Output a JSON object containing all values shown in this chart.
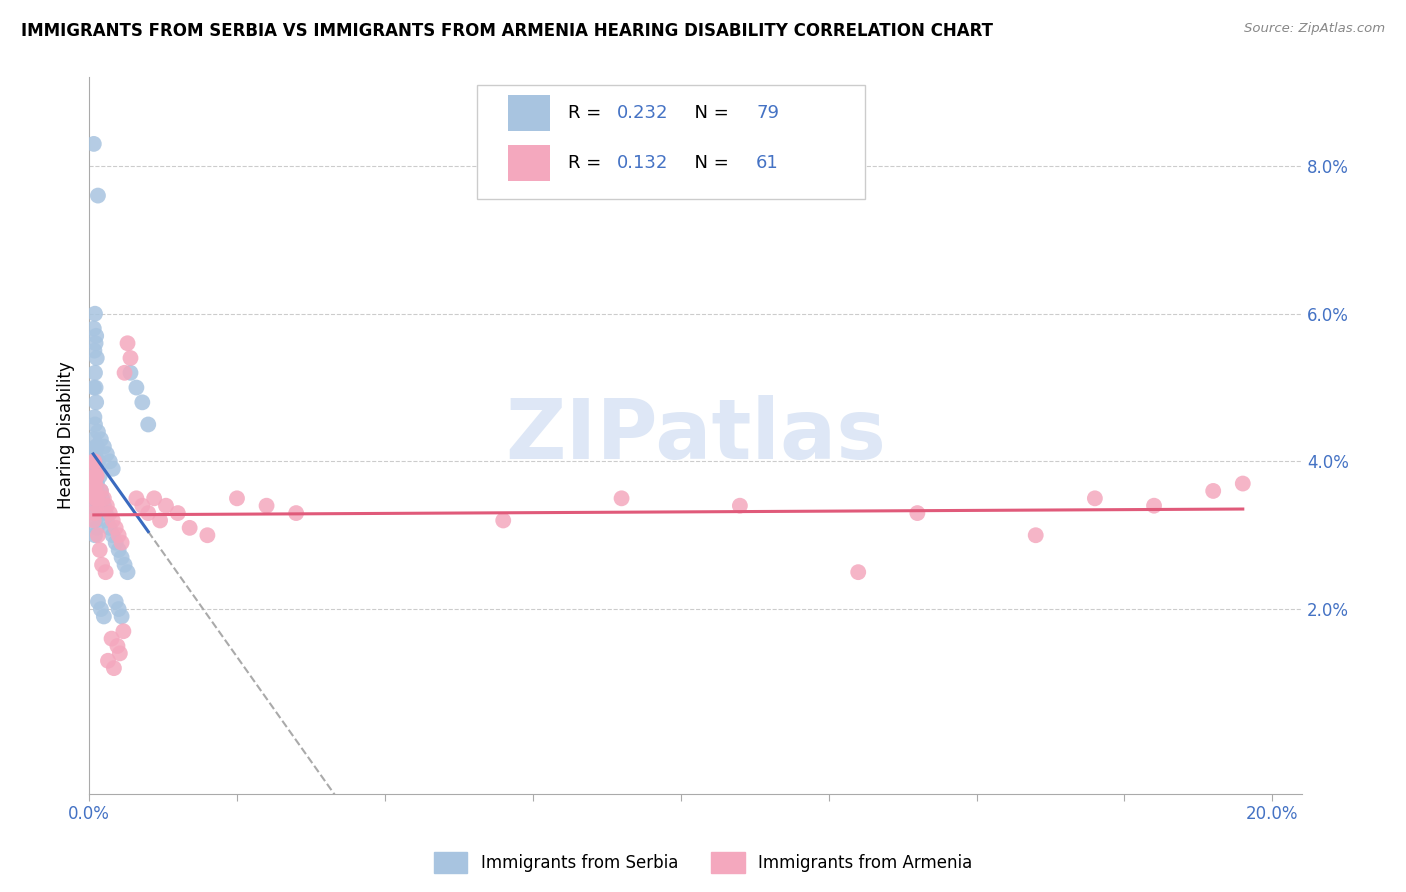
{
  "title": "IMMIGRANTS FROM SERBIA VS IMMIGRANTS FROM ARMENIA HEARING DISABILITY CORRELATION CHART",
  "source": "Source: ZipAtlas.com",
  "ylabel": "Hearing Disability",
  "series1_label": "Immigrants from Serbia",
  "series2_label": "Immigrants from Armenia",
  "series1_R": "0.232",
  "series1_N": "79",
  "series2_R": "0.132",
  "series2_N": "61",
  "series1_color": "#a8c4e0",
  "series2_color": "#f4a8be",
  "series1_line_color": "#3a6abf",
  "series2_line_color": "#e05a7a",
  "dashed_line_color": "#aaaaaa",
  "xlim": [
    0.0,
    0.205
  ],
  "ylim": [
    -0.005,
    0.092
  ],
  "yticks_right": [
    0.02,
    0.04,
    0.06,
    0.08
  ],
  "tick_label_color": "#4472c4",
  "background_color": "#ffffff",
  "watermark_text": "ZIPatlas",
  "watermark_color": "#c8d8f0",
  "serbia_x": [
    0.0008,
    0.0015,
    0.001,
    0.0012,
    0.0009,
    0.0011,
    0.0013,
    0.0007,
    0.0014,
    0.001,
    0.0008,
    0.0012,
    0.0009,
    0.0011,
    0.0013,
    0.001,
    0.0008,
    0.0012,
    0.0009,
    0.0011,
    0.001,
    0.0008,
    0.0012,
    0.0009,
    0.0011,
    0.0013,
    0.001,
    0.0008,
    0.0012,
    0.0009,
    0.0011,
    0.001,
    0.0008,
    0.0012,
    0.0009,
    0.0011,
    0.0013,
    0.001,
    0.0008,
    0.0012,
    0.0009,
    0.0011,
    0.001,
    0.0008,
    0.0012,
    0.0009,
    0.0011,
    0.0013,
    0.001,
    0.0016,
    0.0018,
    0.002,
    0.0022,
    0.0025,
    0.0028,
    0.003,
    0.0035,
    0.004,
    0.0045,
    0.005,
    0.0055,
    0.006,
    0.0065,
    0.007,
    0.008,
    0.009,
    0.01,
    0.0015,
    0.002,
    0.0025,
    0.003,
    0.0035,
    0.004,
    0.0045,
    0.005,
    0.0055,
    0.0015,
    0.002,
    0.0025
  ],
  "serbia_y": [
    0.083,
    0.076,
    0.04,
    0.038,
    0.037,
    0.036,
    0.037,
    0.035,
    0.04,
    0.038,
    0.037,
    0.04,
    0.039,
    0.038,
    0.037,
    0.036,
    0.035,
    0.038,
    0.037,
    0.036,
    0.06,
    0.058,
    0.057,
    0.055,
    0.056,
    0.054,
    0.052,
    0.05,
    0.048,
    0.046,
    0.05,
    0.045,
    0.043,
    0.042,
    0.041,
    0.04,
    0.042,
    0.041,
    0.04,
    0.039,
    0.038,
    0.037,
    0.036,
    0.035,
    0.034,
    0.033,
    0.032,
    0.031,
    0.03,
    0.04,
    0.038,
    0.036,
    0.035,
    0.034,
    0.033,
    0.032,
    0.031,
    0.03,
    0.029,
    0.028,
    0.027,
    0.026,
    0.025,
    0.052,
    0.05,
    0.048,
    0.045,
    0.044,
    0.043,
    0.042,
    0.041,
    0.04,
    0.039,
    0.021,
    0.02,
    0.019,
    0.021,
    0.02,
    0.019
  ],
  "armenia_x": [
    0.0008,
    0.0012,
    0.0009,
    0.0011,
    0.0013,
    0.001,
    0.0008,
    0.0012,
    0.0009,
    0.0011,
    0.0013,
    0.001,
    0.0008,
    0.0012,
    0.0009,
    0.0011,
    0.0013,
    0.001,
    0.002,
    0.0025,
    0.003,
    0.0035,
    0.004,
    0.0045,
    0.005,
    0.0055,
    0.006,
    0.0065,
    0.007,
    0.008,
    0.009,
    0.01,
    0.011,
    0.012,
    0.013,
    0.015,
    0.017,
    0.02,
    0.025,
    0.03,
    0.035,
    0.07,
    0.09,
    0.11,
    0.13,
    0.14,
    0.16,
    0.17,
    0.18,
    0.19,
    0.195,
    0.0015,
    0.0018,
    0.0022,
    0.0028,
    0.0032,
    0.0038,
    0.0042,
    0.0048,
    0.0052,
    0.0058
  ],
  "armenia_y": [
    0.04,
    0.038,
    0.036,
    0.035,
    0.034,
    0.033,
    0.032,
    0.038,
    0.037,
    0.036,
    0.035,
    0.038,
    0.036,
    0.035,
    0.04,
    0.039,
    0.038,
    0.037,
    0.036,
    0.035,
    0.034,
    0.033,
    0.032,
    0.031,
    0.03,
    0.029,
    0.052,
    0.056,
    0.054,
    0.035,
    0.034,
    0.033,
    0.035,
    0.032,
    0.034,
    0.033,
    0.031,
    0.03,
    0.035,
    0.034,
    0.033,
    0.032,
    0.035,
    0.034,
    0.025,
    0.033,
    0.03,
    0.035,
    0.034,
    0.036,
    0.037,
    0.03,
    0.028,
    0.026,
    0.025,
    0.013,
    0.016,
    0.012,
    0.015,
    0.014,
    0.017
  ]
}
